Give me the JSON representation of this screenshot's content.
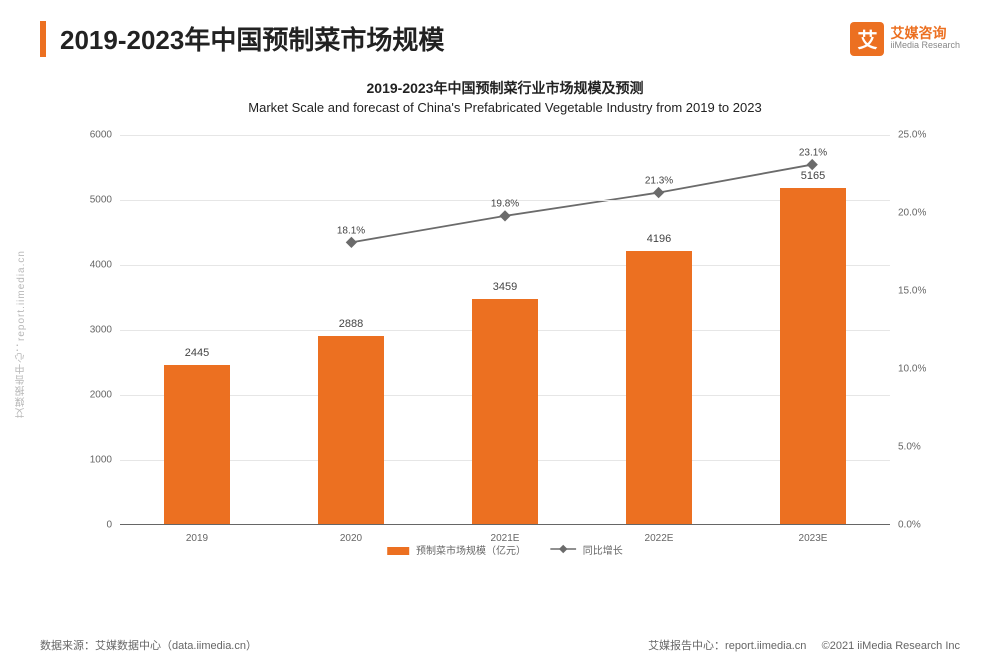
{
  "header": {
    "title": "2019-2023年中国预制菜市场规模",
    "logo_glyph": "艾",
    "logo_cn": "艾媒咨询",
    "logo_en": "iiMedia Research"
  },
  "watermark": "艾媒报告中心：report.iimedia.cn",
  "chart": {
    "type": "bar+line",
    "title_cn": "2019-2023年中国预制菜行业市场规模及预测",
    "title_en": "Market Scale and forecast of China's Prefabricated Vegetable Industry from 2019 to 2023",
    "categories": [
      "2019",
      "2020",
      "2021E",
      "2022E",
      "2023E"
    ],
    "bar_values": [
      2445,
      2888,
      3459,
      4196,
      5165
    ],
    "bar_color": "#ec7021",
    "bar_width_pct": 8.5,
    "line_values_pct": [
      null,
      18.1,
      19.8,
      21.3,
      23.1
    ],
    "line_color": "#6b6b6b",
    "line_marker": "diamond",
    "y_left": {
      "min": 0,
      "max": 6000,
      "step": 1000
    },
    "y_right": {
      "min": 0,
      "max": 25,
      "step": 5,
      "suffix": "%",
      "decimals": 1
    },
    "grid_color": "#e6e6e6",
    "axis_color": "#666666",
    "background_color": "#ffffff",
    "legend": {
      "bar_label": "预制菜市场规模（亿元）",
      "line_label": "同比增长"
    }
  },
  "footer": {
    "source": "数据来源：艾媒数据中心（data.iimedia.cn）",
    "copyright": "©2021  iiMedia Research Inc",
    "report_center": "艾媒报告中心：report.iimedia.cn"
  }
}
